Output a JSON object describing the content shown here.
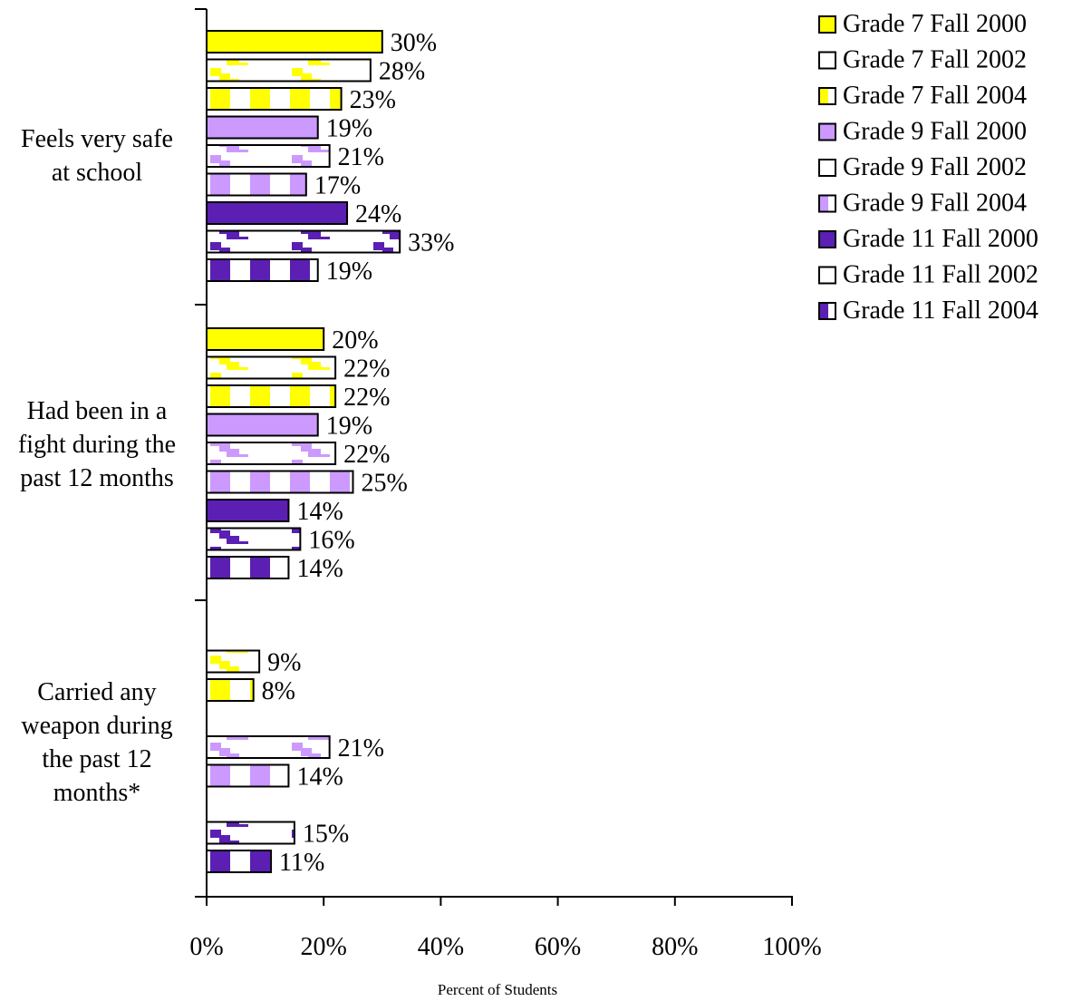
{
  "chart_data": {
    "type": "bar",
    "orientation": "horizontal",
    "xlabel": "Percent of Students",
    "xlim": [
      0,
      100
    ],
    "x_ticks": [
      0,
      20,
      40,
      60,
      80,
      100
    ],
    "x_tick_labels": [
      "0%",
      "20%",
      "40%",
      "60%",
      "80%",
      "100%"
    ],
    "value_suffix": "%",
    "legend_position": "top-right",
    "categories": [
      "Feels very safe at school",
      "Had been in a fight during the past 12 months",
      "Carried any weapon during the past 12 months*"
    ],
    "category_label_lines": [
      [
        "Feels very safe",
        "at school"
      ],
      [
        "Had been in a",
        "fight during the",
        "past 12 months"
      ],
      [
        "Carried  any",
        "weapon during",
        "the past 12",
        "months*"
      ]
    ],
    "series": [
      {
        "name": "Grade 7 Fall 2000",
        "color": "#ffff00",
        "pattern": "solid",
        "values": [
          30,
          20,
          null
        ]
      },
      {
        "name": "Grade 7 Fall 2002",
        "color": "#ffff00",
        "pattern": "steps",
        "values": [
          28,
          22,
          9
        ]
      },
      {
        "name": "Grade 7 Fall 2004",
        "color": "#ffff00",
        "pattern": "stripes",
        "values": [
          23,
          22,
          8
        ]
      },
      {
        "name": "Grade 9 Fall 2000",
        "color": "#cc99ff",
        "pattern": "solid",
        "values": [
          19,
          19,
          null
        ]
      },
      {
        "name": "Grade 9 Fall 2002",
        "color": "#cc99ff",
        "pattern": "steps",
        "values": [
          21,
          22,
          21
        ]
      },
      {
        "name": "Grade 9 Fall 2004",
        "color": "#cc99ff",
        "pattern": "stripes",
        "values": [
          17,
          25,
          14
        ]
      },
      {
        "name": "Grade 11 Fall 2000",
        "color": "#5b1fb3",
        "pattern": "solid",
        "values": [
          24,
          14,
          null
        ]
      },
      {
        "name": "Grade 11 Fall 2002",
        "color": "#5b1fb3",
        "pattern": "steps",
        "values": [
          33,
          16,
          15
        ]
      },
      {
        "name": "Grade 11 Fall 2004",
        "color": "#5b1fb3",
        "pattern": "stripes",
        "values": [
          19,
          14,
          11
        ]
      }
    ]
  }
}
